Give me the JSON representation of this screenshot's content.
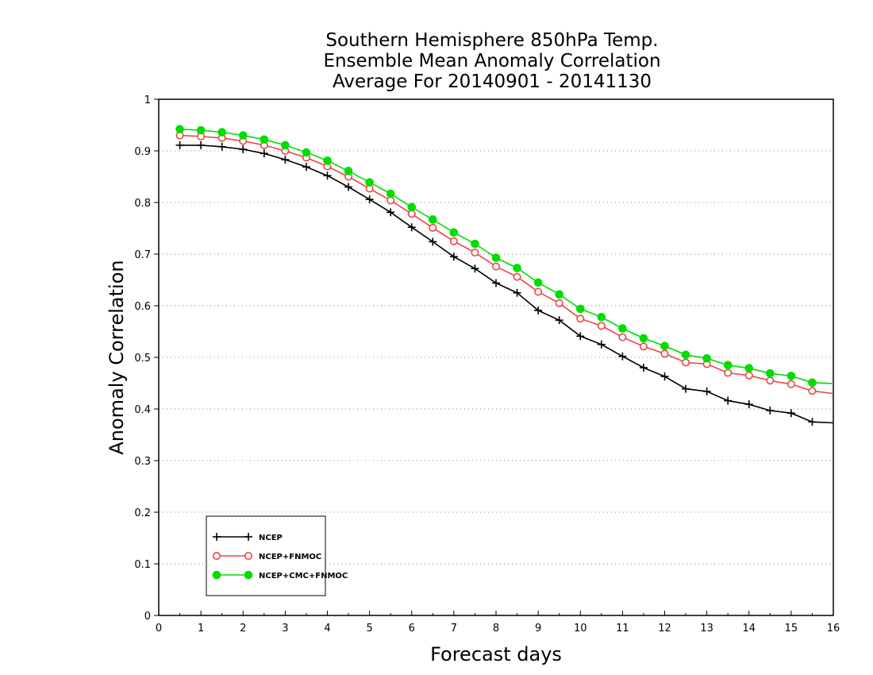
{
  "chart_data": {
    "type": "line",
    "title": [
      "Southern Hemisphere 850hPa Temp.",
      "Ensemble Mean Anomaly Correlation",
      "Average For 20140901 - 20141130"
    ],
    "xlabel": "Forecast days",
    "ylabel": "Anomaly Correlation",
    "xlim": [
      0,
      16
    ],
    "ylim": [
      0,
      1
    ],
    "xticks": [
      "0",
      "1",
      "2",
      "3",
      "4",
      "5",
      "6",
      "7",
      "8",
      "9",
      "10",
      "11",
      "12",
      "13",
      "14",
      "15",
      "16"
    ],
    "yticks": [
      "0",
      "0.1",
      "0.2",
      "0.3",
      "0.4",
      "0.5",
      "0.6",
      "0.7",
      "0.8",
      "0.9",
      "1"
    ],
    "grid": "horizontal dotted",
    "legend_position": "bottom-left",
    "x": [
      0.5,
      1,
      1.5,
      2,
      2.5,
      3,
      3.5,
      4,
      4.5,
      5,
      5.5,
      6,
      6.5,
      7,
      7.5,
      8,
      8.5,
      9,
      9.5,
      10,
      10.5,
      11,
      11.5,
      12,
      12.5,
      13,
      13.5,
      14,
      14.5,
      15,
      15.5,
      16
    ],
    "series": [
      {
        "name": "NCEP",
        "color": "#000000",
        "marker": "plus",
        "values": [
          0.911,
          0.911,
          0.908,
          0.903,
          0.895,
          0.883,
          0.869,
          0.852,
          0.83,
          0.806,
          0.781,
          0.752,
          0.724,
          0.695,
          0.672,
          0.644,
          0.625,
          0.591,
          0.572,
          0.541,
          0.525,
          0.502,
          0.48,
          0.463,
          0.439,
          0.434,
          0.416,
          0.409,
          0.397,
          0.392,
          0.375,
          0.373
        ]
      },
      {
        "name": "NCEP+FNMOC",
        "color": "#ee4444",
        "marker": "open-circle",
        "values": [
          0.93,
          0.928,
          0.925,
          0.919,
          0.911,
          0.9,
          0.887,
          0.87,
          0.85,
          0.827,
          0.804,
          0.778,
          0.751,
          0.725,
          0.703,
          0.676,
          0.656,
          0.627,
          0.605,
          0.575,
          0.561,
          0.539,
          0.521,
          0.507,
          0.49,
          0.487,
          0.47,
          0.465,
          0.455,
          0.448,
          0.435,
          0.43
        ]
      },
      {
        "name": "NCEP+CMC+FNMOC",
        "color": "#00dd00",
        "marker": "filled-circle",
        "values": [
          0.942,
          0.94,
          0.936,
          0.93,
          0.922,
          0.911,
          0.897,
          0.881,
          0.861,
          0.839,
          0.817,
          0.791,
          0.767,
          0.742,
          0.72,
          0.693,
          0.673,
          0.645,
          0.622,
          0.594,
          0.578,
          0.556,
          0.537,
          0.522,
          0.505,
          0.498,
          0.485,
          0.479,
          0.469,
          0.464,
          0.451,
          0.449
        ]
      }
    ]
  }
}
